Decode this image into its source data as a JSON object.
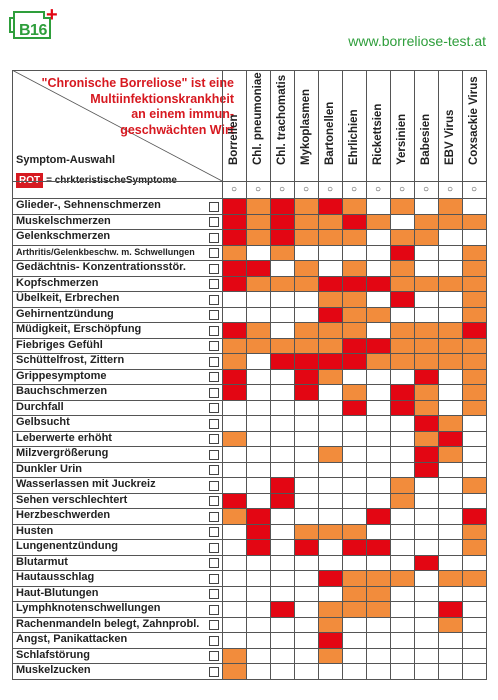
{
  "header": {
    "logo_text": "B16",
    "logo_plus": "+",
    "url": "www.borreliose-test.at"
  },
  "title_lines": [
    "\"Chronische Borreliose\" ist eine",
    "Multiinfektionskrankheit",
    "an einem immun-",
    "geschwächten Wirt"
  ],
  "symptom_label": "Symptom-Auswahl",
  "legend": {
    "badge": "ROT",
    "text": "= chrkteristischeSymptome"
  },
  "radio_glyph": "○",
  "colors": {
    "strong": "#e30613",
    "medium": "#f28c3c",
    "green": "#2e9e3b"
  },
  "columns": [
    "Borrellen",
    "Chl. pneumoniae",
    "Chl. trachomatis",
    "Mykoplasmen",
    "Bartonellen",
    "Ehrlichien",
    "Rickettsien",
    "Yersinien",
    "Babesien",
    "EBV Virus",
    "Coxsackie Virus"
  ],
  "rows": [
    {
      "label": "Glieder-, Sehnenschmerzen",
      "cells": [
        2,
        1,
        2,
        1,
        2,
        1,
        0,
        1,
        0,
        1,
        0
      ]
    },
    {
      "label": "Muskelschmerzen",
      "cells": [
        2,
        1,
        2,
        1,
        1,
        2,
        1,
        0,
        1,
        1,
        1
      ]
    },
    {
      "label": "Gelenkschmerzen",
      "cells": [
        2,
        1,
        2,
        1,
        1,
        1,
        0,
        1,
        1,
        0,
        0
      ]
    },
    {
      "label": "Arthritis/Gelenkbeschw. m. Schwellungen",
      "small": true,
      "cells": [
        1,
        0,
        1,
        0,
        0,
        0,
        0,
        2,
        0,
        0,
        1
      ]
    },
    {
      "label": "Gedächtnis- Konzentrationsstör.",
      "cells": [
        2,
        2,
        0,
        1,
        0,
        1,
        0,
        1,
        0,
        0,
        1
      ]
    },
    {
      "label": "Kopfschmerzen",
      "cells": [
        2,
        1,
        1,
        1,
        2,
        2,
        2,
        1,
        1,
        1,
        1
      ]
    },
    {
      "label": "Übelkeit, Erbrechen",
      "cells": [
        0,
        0,
        0,
        0,
        1,
        1,
        0,
        2,
        0,
        0,
        1
      ]
    },
    {
      "label": "Gehirnentzündung",
      "cells": [
        0,
        0,
        0,
        0,
        2,
        1,
        1,
        0,
        0,
        0,
        1
      ]
    },
    {
      "label": "Müdigkeit, Erschöpfung",
      "cells": [
        2,
        1,
        0,
        1,
        1,
        1,
        0,
        1,
        1,
        1,
        2
      ]
    },
    {
      "label": "Fiebriges Gefühl",
      "cells": [
        1,
        1,
        1,
        1,
        1,
        2,
        2,
        1,
        1,
        1,
        1
      ]
    },
    {
      "label": "Schüttelfrost, Zittern",
      "cells": [
        1,
        0,
        2,
        2,
        2,
        2,
        1,
        1,
        1,
        1,
        1
      ]
    },
    {
      "label": "Grippesymptome",
      "cells": [
        2,
        0,
        0,
        2,
        1,
        0,
        0,
        0,
        2,
        0,
        1
      ]
    },
    {
      "label": "Bauchschmerzen",
      "cells": [
        2,
        0,
        0,
        2,
        0,
        1,
        0,
        2,
        1,
        0,
        1
      ]
    },
    {
      "label": "Durchfall",
      "cells": [
        0,
        0,
        0,
        0,
        0,
        2,
        0,
        2,
        1,
        0,
        1
      ]
    },
    {
      "label": "Gelbsucht",
      "cells": [
        0,
        0,
        0,
        0,
        0,
        0,
        0,
        0,
        2,
        1,
        0
      ]
    },
    {
      "label": "Leberwerte erhöht",
      "cells": [
        1,
        0,
        0,
        0,
        0,
        0,
        0,
        0,
        1,
        2,
        0
      ]
    },
    {
      "label": "Milzvergrößerung",
      "cells": [
        0,
        0,
        0,
        0,
        1,
        0,
        0,
        0,
        2,
        1,
        0
      ]
    },
    {
      "label": "Dunkler Urin",
      "cells": [
        0,
        0,
        0,
        0,
        0,
        0,
        0,
        0,
        2,
        0,
        0
      ]
    },
    {
      "label": "Wasserlassen mit Juckreiz",
      "cells": [
        0,
        0,
        2,
        0,
        0,
        0,
        0,
        1,
        0,
        0,
        1
      ]
    },
    {
      "label": "Sehen verschlechtert",
      "cells": [
        2,
        0,
        2,
        0,
        0,
        0,
        0,
        1,
        0,
        0,
        0
      ]
    },
    {
      "label": "Herzbeschwerden",
      "cells": [
        1,
        2,
        0,
        0,
        0,
        0,
        2,
        0,
        0,
        0,
        2
      ]
    },
    {
      "label": "Husten",
      "cells": [
        0,
        2,
        0,
        1,
        1,
        1,
        0,
        0,
        0,
        0,
        1
      ]
    },
    {
      "label": "Lungenentzündung",
      "cells": [
        0,
        2,
        0,
        2,
        0,
        2,
        2,
        0,
        0,
        0,
        1
      ]
    },
    {
      "label": "Blutarmut",
      "cells": [
        0,
        0,
        0,
        0,
        0,
        0,
        0,
        0,
        2,
        0,
        0
      ]
    },
    {
      "label": "Hautausschlag",
      "cells": [
        0,
        0,
        0,
        0,
        2,
        1,
        1,
        1,
        0,
        1,
        1
      ]
    },
    {
      "label": "Haut-Blutungen",
      "cells": [
        0,
        0,
        0,
        0,
        0,
        1,
        1,
        0,
        0,
        0,
        0
      ]
    },
    {
      "label": "Lymphknotenschwellungen",
      "cells": [
        0,
        0,
        2,
        0,
        1,
        1,
        1,
        0,
        0,
        2,
        0
      ]
    },
    {
      "label": "Rachenmandeln belegt, Zahnprobl.",
      "cells": [
        0,
        0,
        0,
        0,
        1,
        0,
        0,
        0,
        0,
        1,
        0
      ]
    },
    {
      "label": "Angst, Panikattacken",
      "cells": [
        0,
        0,
        0,
        0,
        2,
        0,
        0,
        0,
        0,
        0,
        0
      ]
    },
    {
      "label": "Schlafstörung",
      "cells": [
        1,
        0,
        0,
        0,
        1,
        0,
        0,
        0,
        0,
        0,
        0
      ]
    },
    {
      "label": "Muskelzucken",
      "cells": [
        1,
        0,
        0,
        0,
        0,
        0,
        0,
        0,
        0,
        0,
        0
      ]
    }
  ]
}
